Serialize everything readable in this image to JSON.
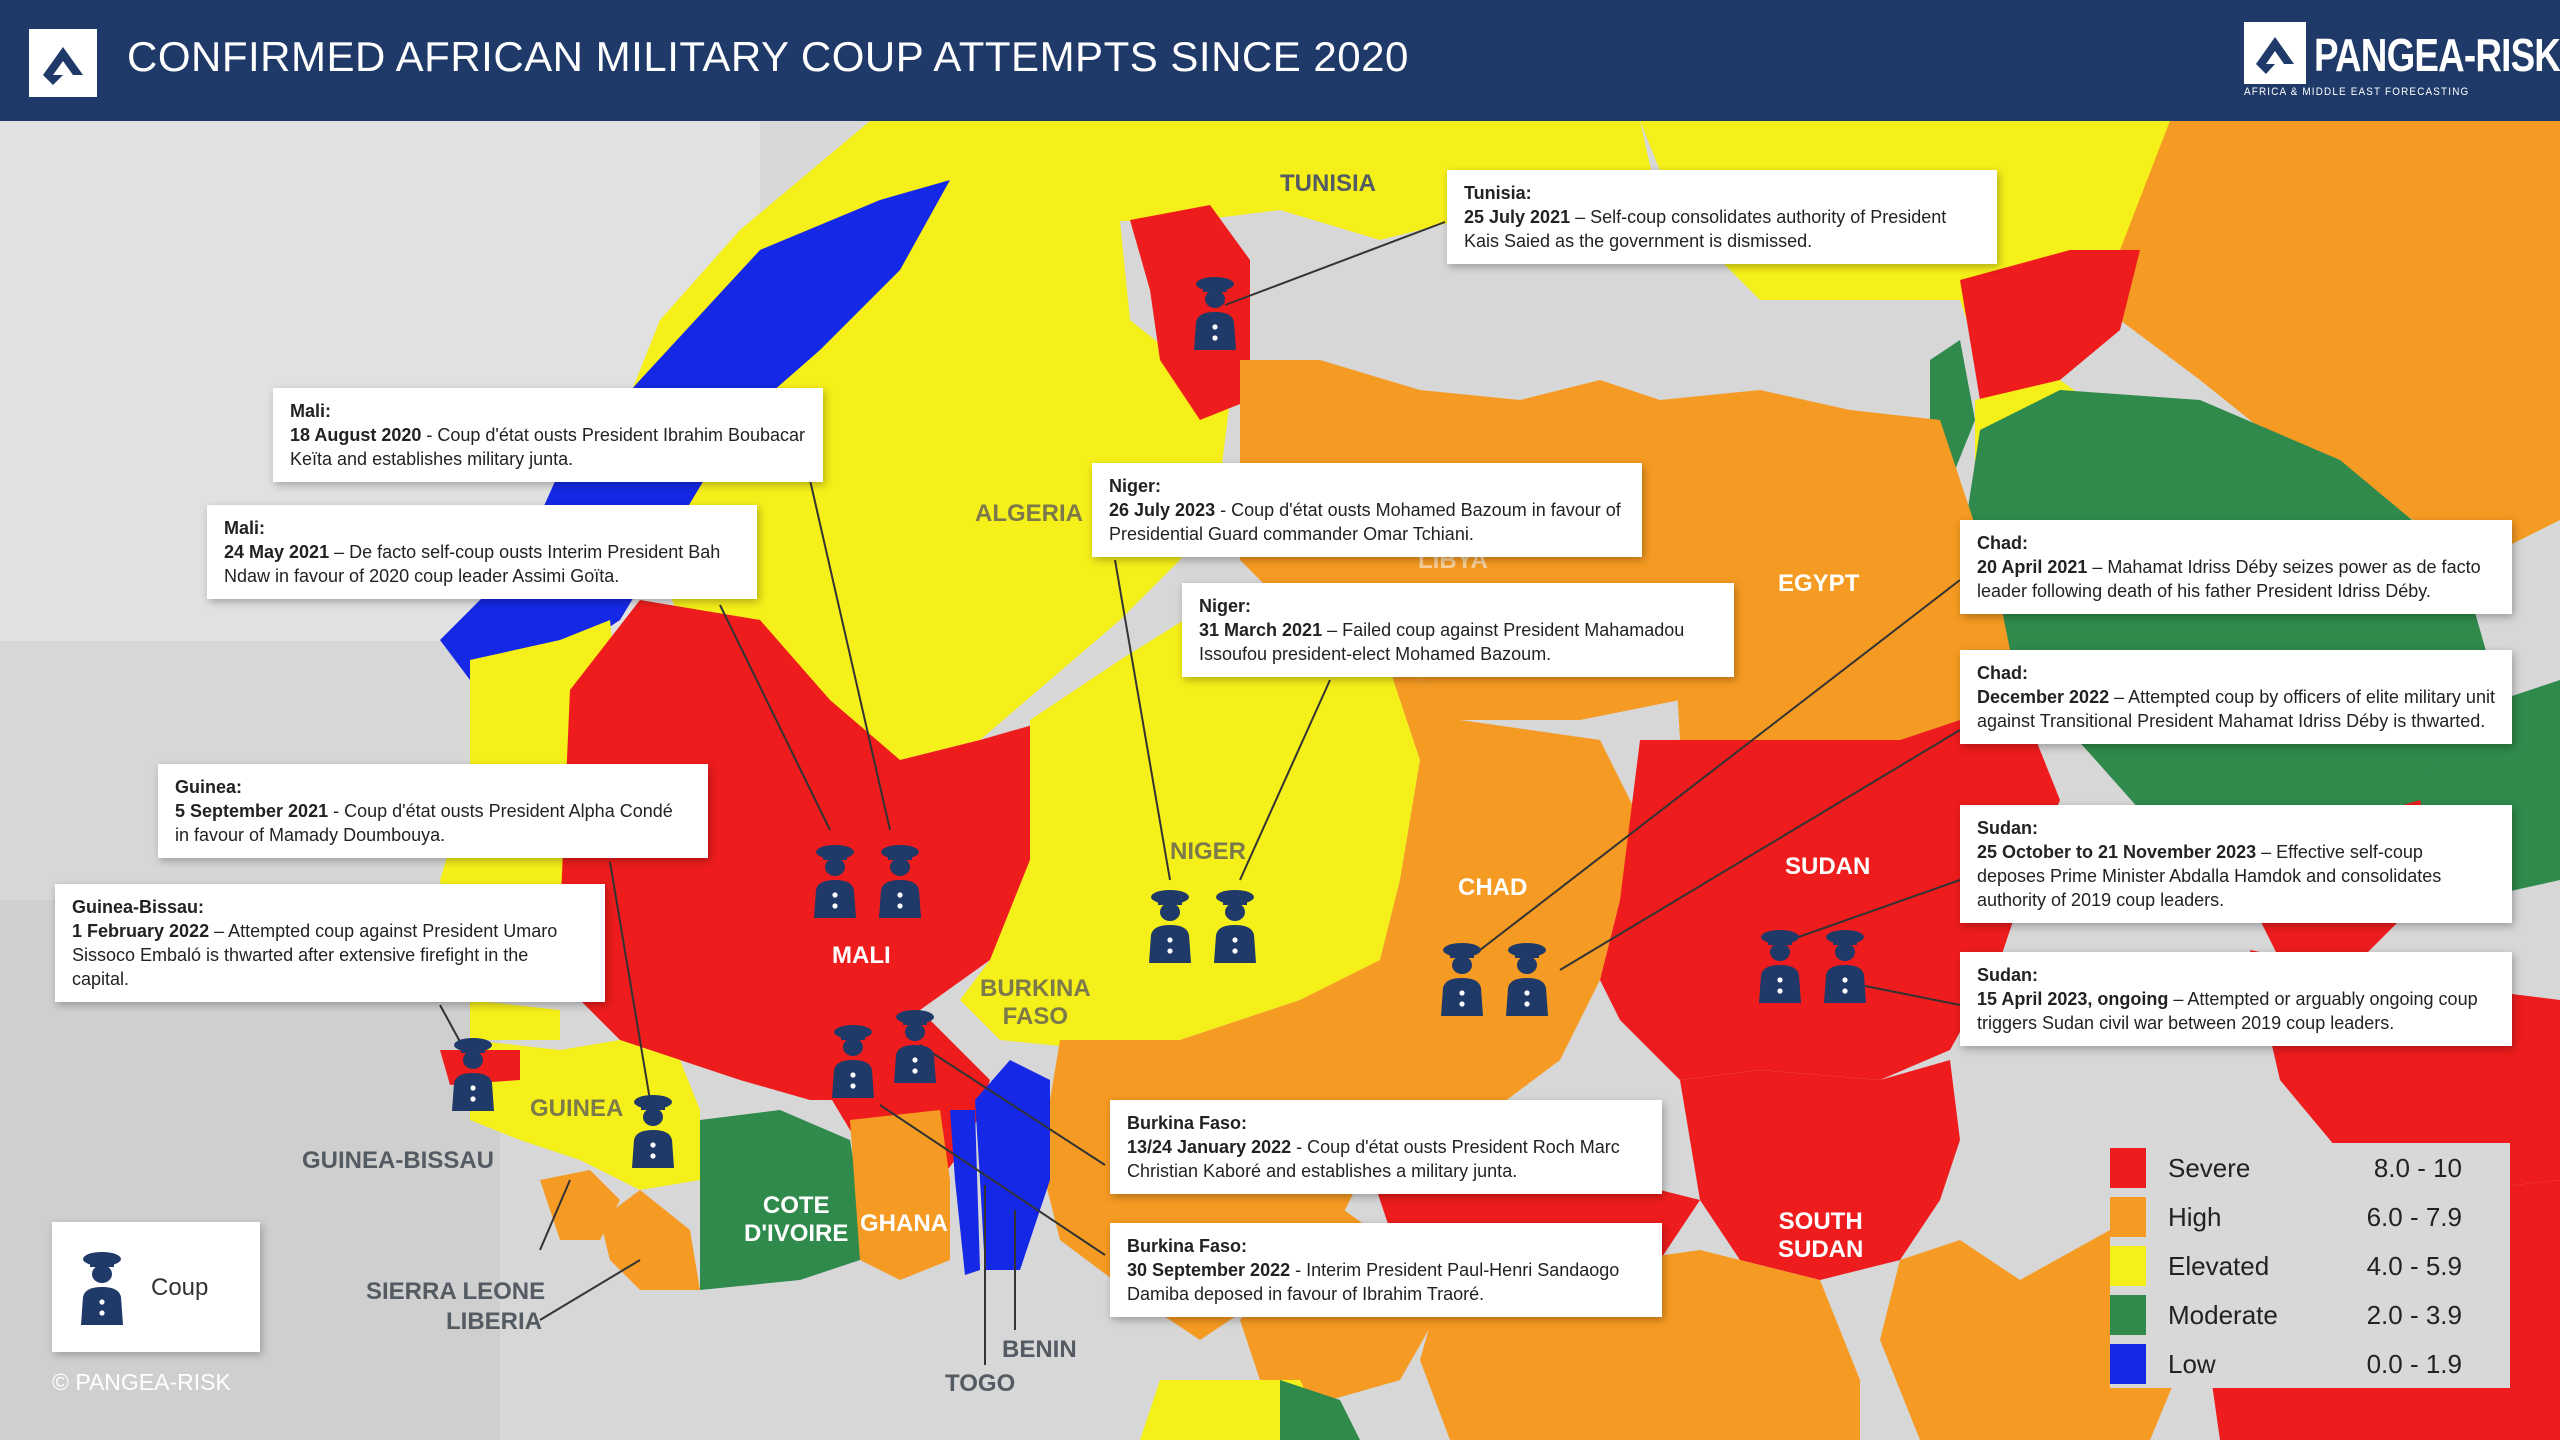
{
  "header": {
    "title": "CONFIRMED AFRICAN MILITARY COUP ATTEMPTS SINCE 2020",
    "brand_name": "PANGEA-RISK",
    "brand_tagline": "AFRICA & MIDDLE EAST FORECASTING"
  },
  "colors": {
    "header_bg": "#1f3a68",
    "severe": "#ee1c1c",
    "high": "#f59a22",
    "elevated": "#f5ef1a",
    "moderate": "#2f8a4c",
    "low": "#1428e6",
    "soldier": "#1f3a68"
  },
  "labels": {
    "tunisia": "TUNISIA",
    "algeria": "ALGERIA",
    "libya": "LIBYA",
    "egypt": "EGYPT",
    "niger": "NIGER",
    "chad": "CHAD",
    "sudan": "SUDAN",
    "south_sudan_1": "SOUTH",
    "south_sudan_2": "SUDAN",
    "mali": "MALI",
    "burkina_1": "BURKINA",
    "burkina_2": "FASO",
    "guinea": "GUINEA",
    "guinea_bissau": "GUINEA-BISSAU",
    "cote_1": "COTE",
    "cote_2": "D'IVOIRE",
    "ghana": "GHANA",
    "sierra_leone": "SIERRA LEONE",
    "liberia": "LIBERIA",
    "togo": "TOGO",
    "benin": "BENIN"
  },
  "callouts": {
    "tunisia": {
      "country": "Tunisia:",
      "date": "25 July 2021",
      "text": " – Self-coup consolidates authority of President Kais Saied as the government is dismissed."
    },
    "mali1": {
      "country": "Mali:",
      "date": "18 August 2020",
      "text": " - Coup d'état ousts President Ibrahim Boubacar Keïta and establishes military junta."
    },
    "mali2": {
      "country": "Mali:",
      "date": "24 May 2021",
      "text": " – De facto self-coup ousts Interim President Bah Ndaw in favour of 2020 coup leader Assimi Goïta."
    },
    "niger1": {
      "country": "Niger:",
      "date": "26 July 2023",
      "text": " - Coup d'état ousts Mohamed Bazoum in favour of Presidential Guard commander Omar Tchiani."
    },
    "niger2": {
      "country": "Niger:",
      "date": "31 March 2021",
      "text": " – Failed coup against President Mahamadou Issoufou president-elect Mohamed Bazoum."
    },
    "guinea": {
      "country": "Guinea:",
      "date": "5 September 2021",
      "text": " - Coup d'état ousts President Alpha Condé in favour of Mamady Doumbouya."
    },
    "guinea_bissau": {
      "country": "Guinea-Bissau:",
      "date": "1 February 2022",
      "text": " – Attempted coup against President Umaro Sissoco Embaló is thwarted after extensive firefight in the capital."
    },
    "chad1": {
      "country": "Chad:",
      "date": "20 April 2021",
      "text": " – Mahamat Idriss Déby seizes power as de facto leader following death of his father President Idriss Déby."
    },
    "chad2": {
      "country": "Chad:",
      "date": "December 2022",
      "text": " – Attempted coup by officers of elite military unit against Transitional President Mahamat Idriss Déby is thwarted."
    },
    "sudan1": {
      "country": "Sudan:",
      "date": "25 October to 21 November 2023",
      "text": " – Effective self-coup deposes Prime Minister Abdalla Hamdok and consolidates authority of 2019 coup leaders."
    },
    "sudan2": {
      "country": "Sudan:",
      "date": "15 April 2023, ongoing",
      "text": " – Attempted or arguably ongoing coup triggers Sudan civil war between 2019 coup leaders."
    },
    "burkina1": {
      "country": "Burkina Faso:",
      "date": "13/24 January 2022",
      "text": " - Coup d'état ousts President Roch Marc Christian Kaboré and establishes a military junta."
    },
    "burkina2": {
      "country": "Burkina Faso:",
      "date": "30 September 2022",
      "text": " - Interim President Paul-Henri Sandaogo Damiba deposed in favour of Ibrahim Traoré."
    }
  },
  "legend": [
    {
      "name": "Severe",
      "range": "8.0 - 10",
      "color": "#ee1c1c"
    },
    {
      "name": "High",
      "range": "6.0 - 7.9",
      "color": "#f59a22"
    },
    {
      "name": "Elevated",
      "range": "4.0 - 5.9",
      "color": "#f5ef1a"
    },
    {
      "name": "Moderate",
      "range": "2.0 - 3.9",
      "color": "#2f8a4c"
    },
    {
      "name": "Low",
      "range": "0.0 - 1.9",
      "color": "#1428e6"
    }
  ],
  "coup_key": {
    "label": "Coup",
    "icon": "soldier-icon"
  },
  "copyright": "© PANGEA-RISK"
}
